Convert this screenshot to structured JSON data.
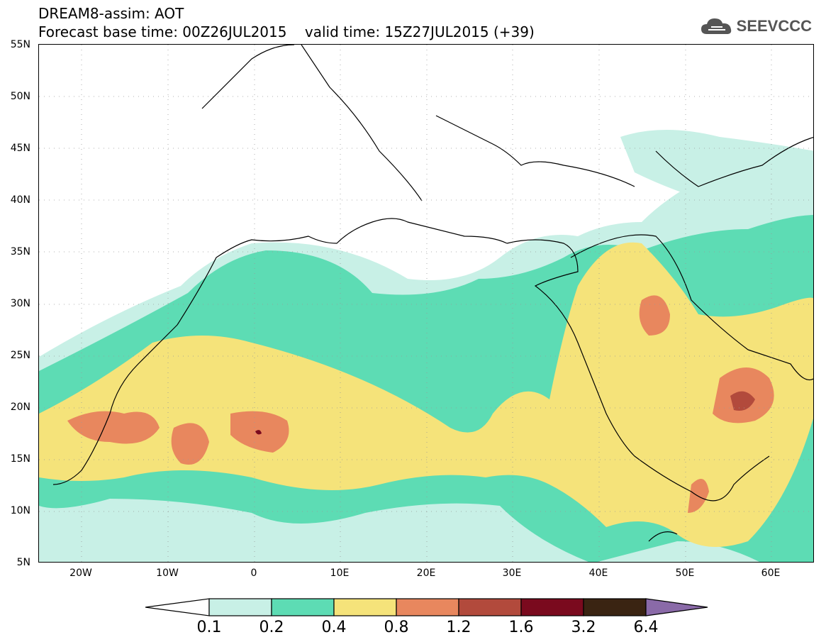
{
  "header": {
    "line1": "DREAM8-assim: AOT",
    "line2": "Forecast base time: 00Z26JUL2015    valid time: 15Z27JUL2015 (+39)"
  },
  "logo": {
    "text": "SEEVCCC",
    "icon": "cloud-icon"
  },
  "axes": {
    "lat_labels": [
      "55N",
      "50N",
      "45N",
      "40N",
      "35N",
      "30N",
      "25N",
      "20N",
      "15N",
      "10N",
      "5N"
    ],
    "lon_labels": [
      "20W",
      "10W",
      "0",
      "10E",
      "20E",
      "30E",
      "40E",
      "50E",
      "60E"
    ]
  },
  "colorbar": {
    "labels": [
      "0.1",
      "0.2",
      "0.4",
      "0.8",
      "1.2",
      "1.6",
      "3.2",
      "6.4"
    ],
    "colors": [
      "#ffffff",
      "#c8f0e6",
      "#5ddcb4",
      "#f5e37a",
      "#e8875e",
      "#b24a3c",
      "#7a0a1e",
      "#3a2412",
      "#8a6aa8"
    ]
  },
  "map": {
    "variable": "AOT",
    "lon_range": [
      -25,
      65
    ],
    "lat_range": [
      5,
      55
    ]
  }
}
